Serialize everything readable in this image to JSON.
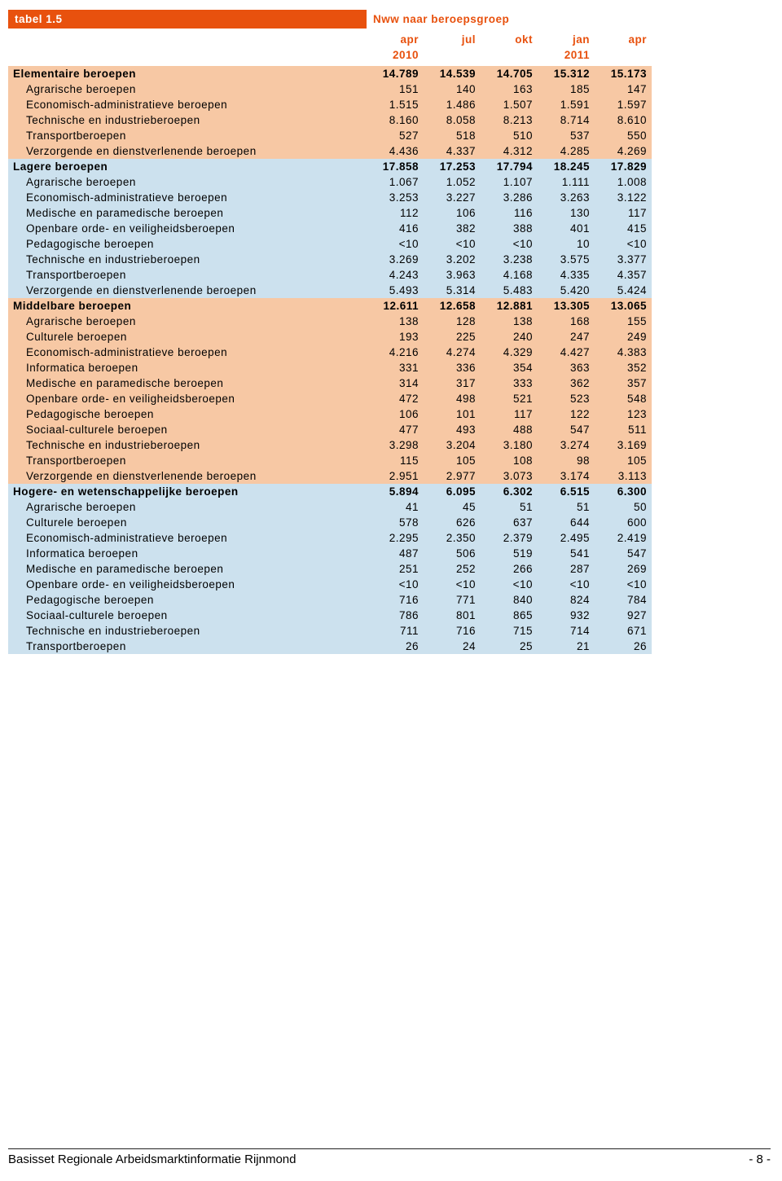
{
  "table": {
    "number": "tabel 1.5",
    "title": "Nww naar beroepsgroep",
    "header1": [
      "apr",
      "jul",
      "okt",
      "jan",
      "apr"
    ],
    "header2": [
      "2010",
      "",
      "",
      "2011",
      ""
    ],
    "groups": [
      {
        "name": "Elementaire beroepen",
        "vals": [
          "14.789",
          "14.539",
          "14.705",
          "15.312",
          "15.173"
        ],
        "band": "orange",
        "rows": [
          {
            "name": "Agrarische beroepen",
            "vals": [
              "151",
              "140",
              "163",
              "185",
              "147"
            ]
          },
          {
            "name": "Economisch-administratieve beroepen",
            "vals": [
              "1.515",
              "1.486",
              "1.507",
              "1.591",
              "1.597"
            ]
          },
          {
            "name": "Technische en industrieberoepen",
            "vals": [
              "8.160",
              "8.058",
              "8.213",
              "8.714",
              "8.610"
            ]
          },
          {
            "name": "Transportberoepen",
            "vals": [
              "527",
              "518",
              "510",
              "537",
              "550"
            ]
          },
          {
            "name": "Verzorgende en dienstverlenende beroepen",
            "vals": [
              "4.436",
              "4.337",
              "4.312",
              "4.285",
              "4.269"
            ]
          }
        ]
      },
      {
        "name": "Lagere beroepen",
        "vals": [
          "17.858",
          "17.253",
          "17.794",
          "18.245",
          "17.829"
        ],
        "band": "blue",
        "rows": [
          {
            "name": "Agrarische beroepen",
            "vals": [
              "1.067",
              "1.052",
              "1.107",
              "1.111",
              "1.008"
            ]
          },
          {
            "name": "Economisch-administratieve beroepen",
            "vals": [
              "3.253",
              "3.227",
              "3.286",
              "3.263",
              "3.122"
            ]
          },
          {
            "name": "Medische en paramedische beroepen",
            "vals": [
              "112",
              "106",
              "116",
              "130",
              "117"
            ]
          },
          {
            "name": "Openbare orde- en veiligheidsberoepen",
            "vals": [
              "416",
              "382",
              "388",
              "401",
              "415"
            ]
          },
          {
            "name": "Pedagogische beroepen",
            "vals": [
              "<10",
              "<10",
              "<10",
              "10",
              "<10"
            ]
          },
          {
            "name": "Technische en industrieberoepen",
            "vals": [
              "3.269",
              "3.202",
              "3.238",
              "3.575",
              "3.377"
            ]
          },
          {
            "name": "Transportberoepen",
            "vals": [
              "4.243",
              "3.963",
              "4.168",
              "4.335",
              "4.357"
            ]
          },
          {
            "name": "Verzorgende en dienstverlenende beroepen",
            "vals": [
              "5.493",
              "5.314",
              "5.483",
              "5.420",
              "5.424"
            ]
          }
        ]
      },
      {
        "name": "Middelbare beroepen",
        "vals": [
          "12.611",
          "12.658",
          "12.881",
          "13.305",
          "13.065"
        ],
        "band": "orange",
        "rows": [
          {
            "name": "Agrarische beroepen",
            "vals": [
              "138",
              "128",
              "138",
              "168",
              "155"
            ]
          },
          {
            "name": "Culturele beroepen",
            "vals": [
              "193",
              "225",
              "240",
              "247",
              "249"
            ]
          },
          {
            "name": "Economisch-administratieve beroepen",
            "vals": [
              "4.216",
              "4.274",
              "4.329",
              "4.427",
              "4.383"
            ]
          },
          {
            "name": "Informatica beroepen",
            "vals": [
              "331",
              "336",
              "354",
              "363",
              "352"
            ]
          },
          {
            "name": "Medische en paramedische beroepen",
            "vals": [
              "314",
              "317",
              "333",
              "362",
              "357"
            ]
          },
          {
            "name": "Openbare orde- en veiligheidsberoepen",
            "vals": [
              "472",
              "498",
              "521",
              "523",
              "548"
            ]
          },
          {
            "name": "Pedagogische beroepen",
            "vals": [
              "106",
              "101",
              "117",
              "122",
              "123"
            ]
          },
          {
            "name": "Sociaal-culturele beroepen",
            "vals": [
              "477",
              "493",
              "488",
              "547",
              "511"
            ]
          },
          {
            "name": "Technische en industrieberoepen",
            "vals": [
              "3.298",
              "3.204",
              "3.180",
              "3.274",
              "3.169"
            ]
          },
          {
            "name": "Transportberoepen",
            "vals": [
              "115",
              "105",
              "108",
              "98",
              "105"
            ]
          },
          {
            "name": "Verzorgende en dienstverlenende beroepen",
            "vals": [
              "2.951",
              "2.977",
              "3.073",
              "3.174",
              "3.113"
            ]
          }
        ]
      },
      {
        "name": "Hogere- en wetenschappelijke beroepen",
        "vals": [
          "5.894",
          "6.095",
          "6.302",
          "6.515",
          "6.300"
        ],
        "band": "blue",
        "rows": [
          {
            "name": "Agrarische beroepen",
            "vals": [
              "41",
              "45",
              "51",
              "51",
              "50"
            ]
          },
          {
            "name": "Culturele beroepen",
            "vals": [
              "578",
              "626",
              "637",
              "644",
              "600"
            ]
          },
          {
            "name": "Economisch-administratieve beroepen",
            "vals": [
              "2.295",
              "2.350",
              "2.379",
              "2.495",
              "2.419"
            ]
          },
          {
            "name": "Informatica beroepen",
            "vals": [
              "487",
              "506",
              "519",
              "541",
              "547"
            ]
          },
          {
            "name": "Medische en paramedische beroepen",
            "vals": [
              "251",
              "252",
              "266",
              "287",
              "269"
            ]
          },
          {
            "name": "Openbare orde- en veiligheidsberoepen",
            "vals": [
              "<10",
              "<10",
              "<10",
              "<10",
              "<10"
            ]
          },
          {
            "name": "Pedagogische beroepen",
            "vals": [
              "716",
              "771",
              "840",
              "824",
              "784"
            ]
          },
          {
            "name": "Sociaal-culturele beroepen",
            "vals": [
              "786",
              "801",
              "865",
              "932",
              "927"
            ]
          },
          {
            "name": "Technische en industrieberoepen",
            "vals": [
              "711",
              "716",
              "715",
              "714",
              "671"
            ]
          },
          {
            "name": "Transportberoepen",
            "vals": [
              "26",
              "24",
              "25",
              "21",
              "26"
            ]
          }
        ]
      }
    ]
  },
  "footer": {
    "left": "Basisset Regionale Arbeidsmarktinformatie Rijnmond",
    "right": "- 8 -"
  },
  "colors": {
    "orange_header": "#e8510e",
    "orange_band": "#f7c8a4",
    "blue_band": "#cce1ee"
  }
}
